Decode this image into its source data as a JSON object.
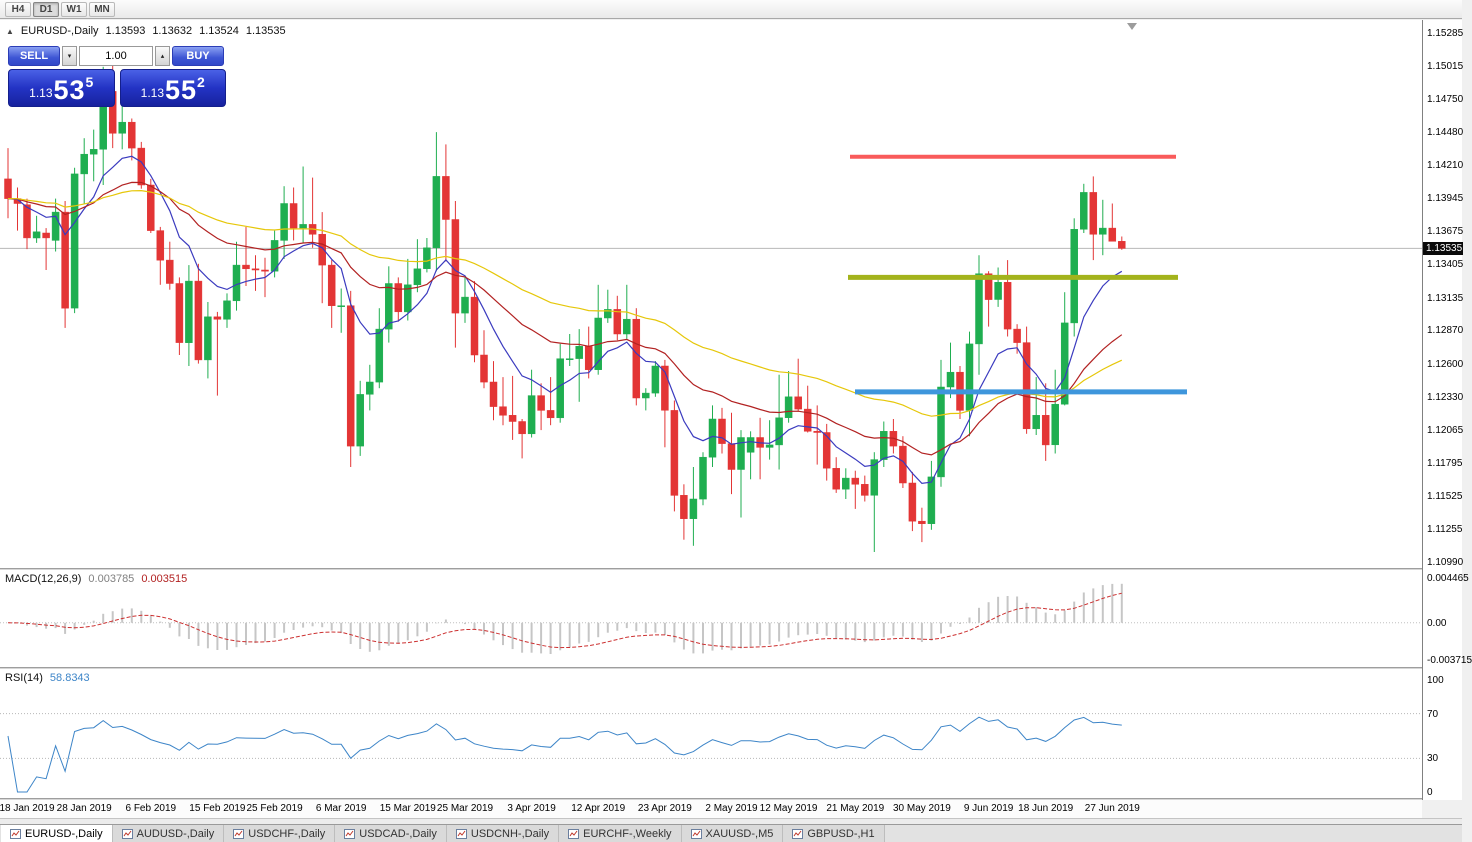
{
  "toolbar": {
    "buttons": [
      {
        "label": "H4",
        "active": false
      },
      {
        "label": "D1",
        "active": true
      },
      {
        "label": "W1",
        "active": false
      },
      {
        "label": "MN",
        "active": false
      }
    ]
  },
  "chart_header": {
    "symbol": "EURUSD-,Daily",
    "open": "1.13593",
    "high": "1.13632",
    "low": "1.13524",
    "close": "1.13535"
  },
  "trade_panel": {
    "sell": "SELL",
    "buy": "BUY",
    "volume": "1.00",
    "bid": {
      "prefix": "1.13",
      "big": "53",
      "sup": "5"
    },
    "ask": {
      "prefix": "1.13",
      "big": "55",
      "sup": "2"
    }
  },
  "price_axis": [
    "1.15285",
    "1.15015",
    "1.14750",
    "1.14480",
    "1.14210",
    "1.13945",
    "1.13675",
    "1.13405",
    "1.13135",
    "1.12870",
    "1.12600",
    "1.12330",
    "1.12065",
    "1.11795",
    "1.11525",
    "1.11255",
    "1.10990"
  ],
  "current_price_tag": "1.13535",
  "macd_panel": {
    "name": "MACD(12,26,9)",
    "value_main": "0.003785",
    "value_signal": "0.003515",
    "axis_labels": [
      "0.004465",
      "0.00",
      "-0.003715"
    ]
  },
  "rsi_panel": {
    "name": "RSI(14)",
    "value": "58.8343",
    "axis_labels": [
      "100",
      "70",
      "30",
      "0"
    ]
  },
  "tab_bar": {
    "tabs": [
      {
        "label": "EURUSD-,Daily",
        "active": true
      },
      {
        "label": "AUDUSD-,Daily",
        "active": false
      },
      {
        "label": "USDCHF-,Daily",
        "active": false
      },
      {
        "label": "USDCAD-,Daily",
        "active": false
      },
      {
        "label": "USDCNH-,Daily",
        "active": false
      },
      {
        "label": "EURCHF-,Weekly",
        "active": false
      },
      {
        "label": "XAUUSD-,M5",
        "active": false
      },
      {
        "label": "GBPUSD-,H1",
        "active": false
      }
    ]
  },
  "colors": {
    "up": "#1fae50",
    "down": "#e33535",
    "macd_hist": "#c6c6c6",
    "macd_signal": "#cc3030",
    "rsi_line": "#3d85c8",
    "bid_line": "#b8b8b8",
    "tag_bg": "#0a0a0a",
    "panel_blue": "#2333c4"
  },
  "chart_data": {
    "type": "candlestick",
    "symbol": "EURUSD-",
    "timeframe": "Daily",
    "ylim": [
      1.1094,
      1.1539
    ],
    "current_bid": 1.13535,
    "current_ask": 1.13552,
    "moving_averages": [
      {
        "type": "ema",
        "period": 9,
        "color": "#3b3bbf"
      },
      {
        "type": "ema",
        "period": 26,
        "color": "#b22222"
      },
      {
        "type": "ema",
        "period": 52,
        "color": "#e6c70a"
      }
    ],
    "macd": {
      "fast": 12,
      "slow": 26,
      "signal": 9,
      "scale_max": 0.004465,
      "scale_min": -0.003715
    },
    "rsi": {
      "period": 14,
      "levels": [
        70,
        30
      ],
      "current": 58.8343
    },
    "trend_lines": [
      {
        "price": 1.1428,
        "x1": 850,
        "x2": 1176,
        "color": "#f95b5b",
        "width": 4
      },
      {
        "price": 1.133,
        "x1": 848,
        "x2": 1178,
        "color": "#a3b31c",
        "width": 5
      },
      {
        "price": 1.1237,
        "x1": 855,
        "x2": 1187,
        "color": "#3e96dc",
        "width": 5
      }
    ],
    "date_ticks": [
      {
        "label": "18 Jan 2019",
        "index": 2
      },
      {
        "label": "28 Jan 2019",
        "index": 8
      },
      {
        "label": "6 Feb 2019",
        "index": 15
      },
      {
        "label": "15 Feb 2019",
        "index": 22
      },
      {
        "label": "25 Feb 2019",
        "index": 28
      },
      {
        "label": "6 Mar 2019",
        "index": 35
      },
      {
        "label": "15 Mar 2019",
        "index": 42
      },
      {
        "label": "25 Mar 2019",
        "index": 48
      },
      {
        "label": "3 Apr 2019",
        "index": 55
      },
      {
        "label": "12 Apr 2019",
        "index": 62
      },
      {
        "label": "23 Apr 2019",
        "index": 69
      },
      {
        "label": "2 May 2019",
        "index": 76
      },
      {
        "label": "12 May 2019",
        "index": 82
      },
      {
        "label": "21 May 2019",
        "index": 89
      },
      {
        "label": "30 May 2019",
        "index": 96
      },
      {
        "label": "9 Jun 2019",
        "index": 103
      },
      {
        "label": "18 Jun 2019",
        "index": 109
      },
      {
        "label": "27 Jun 2019",
        "index": 116
      }
    ],
    "candles": [
      [
        1.141,
        1.1435,
        1.1378,
        1.1394
      ],
      [
        1.1394,
        1.1403,
        1.1368,
        1.139
      ],
      [
        1.1389,
        1.1394,
        1.1353,
        1.1362
      ],
      [
        1.1362,
        1.138,
        1.1358,
        1.1367
      ],
      [
        1.1366,
        1.137,
        1.1336,
        1.1362
      ],
      [
        1.136,
        1.1394,
        1.1351,
        1.1383
      ],
      [
        1.1383,
        1.1392,
        1.1289,
        1.1305
      ],
      [
        1.1305,
        1.1419,
        1.1301,
        1.1414
      ],
      [
        1.1414,
        1.1443,
        1.139,
        1.143
      ],
      [
        1.143,
        1.145,
        1.1408,
        1.1434
      ],
      [
        1.1434,
        1.1501,
        1.1405,
        1.1481
      ],
      [
        1.1481,
        1.1514,
        1.1435,
        1.1447
      ],
      [
        1.1447,
        1.1489,
        1.1434,
        1.1456
      ],
      [
        1.1456,
        1.1459,
        1.1425,
        1.1435
      ],
      [
        1.1435,
        1.144,
        1.1402,
        1.1405
      ],
      [
        1.1405,
        1.141,
        1.1366,
        1.1368
      ],
      [
        1.1368,
        1.1371,
        1.1324,
        1.1344
      ],
      [
        1.1344,
        1.1359,
        1.132,
        1.1325
      ],
      [
        1.1325,
        1.133,
        1.1267,
        1.1277
      ],
      [
        1.1277,
        1.134,
        1.1258,
        1.1327
      ],
      [
        1.1327,
        1.1341,
        1.126,
        1.1263
      ],
      [
        1.1263,
        1.131,
        1.1248,
        1.1298
      ],
      [
        1.1298,
        1.1302,
        1.1234,
        1.1296
      ],
      [
        1.1296,
        1.1317,
        1.1289,
        1.1311
      ],
      [
        1.1311,
        1.1359,
        1.1303,
        1.134
      ],
      [
        1.134,
        1.1371,
        1.1323,
        1.1337
      ],
      [
        1.1337,
        1.1348,
        1.1319,
        1.1336
      ],
      [
        1.1336,
        1.1346,
        1.1314,
        1.1335
      ],
      [
        1.1335,
        1.1368,
        1.133,
        1.136
      ],
      [
        1.136,
        1.1404,
        1.1345,
        1.139
      ],
      [
        1.139,
        1.1403,
        1.136,
        1.137
      ],
      [
        1.137,
        1.142,
        1.1358,
        1.1373
      ],
      [
        1.1373,
        1.1411,
        1.1354,
        1.1365
      ],
      [
        1.1365,
        1.1383,
        1.1309,
        1.134
      ],
      [
        1.134,
        1.1344,
        1.1289,
        1.1307
      ],
      [
        1.1307,
        1.1321,
        1.1285,
        1.1307
      ],
      [
        1.1307,
        1.1319,
        1.1176,
        1.1193
      ],
      [
        1.1193,
        1.1246,
        1.1185,
        1.1235
      ],
      [
        1.1235,
        1.1259,
        1.1222,
        1.1245
      ],
      [
        1.1245,
        1.1305,
        1.124,
        1.1288
      ],
      [
        1.1288,
        1.1339,
        1.1277,
        1.1325
      ],
      [
        1.1325,
        1.133,
        1.1294,
        1.1302
      ],
      [
        1.1302,
        1.1345,
        1.1295,
        1.1324
      ],
      [
        1.1324,
        1.1361,
        1.1318,
        1.1337
      ],
      [
        1.1337,
        1.1362,
        1.1334,
        1.1354
      ],
      [
        1.1354,
        1.1448,
        1.1335,
        1.1412
      ],
      [
        1.1412,
        1.1438,
        1.1343,
        1.1377
      ],
      [
        1.1377,
        1.1392,
        1.1273,
        1.1301
      ],
      [
        1.1301,
        1.133,
        1.1293,
        1.1314
      ],
      [
        1.1314,
        1.1327,
        1.1261,
        1.1267
      ],
      [
        1.1267,
        1.1287,
        1.124,
        1.1245
      ],
      [
        1.1245,
        1.1262,
        1.1214,
        1.1225
      ],
      [
        1.1225,
        1.1249,
        1.121,
        1.1218
      ],
      [
        1.1218,
        1.125,
        1.1198,
        1.1213
      ],
      [
        1.1213,
        1.1215,
        1.1183,
        1.1203
      ],
      [
        1.1203,
        1.1255,
        1.12,
        1.1234
      ],
      [
        1.1234,
        1.1244,
        1.1206,
        1.1222
      ],
      [
        1.1222,
        1.1249,
        1.121,
        1.1216
      ],
      [
        1.1216,
        1.1276,
        1.1212,
        1.1264
      ],
      [
        1.1264,
        1.1284,
        1.1258,
        1.1264
      ],
      [
        1.1264,
        1.1288,
        1.1229,
        1.1274
      ],
      [
        1.1274,
        1.129,
        1.1248,
        1.1255
      ],
      [
        1.1255,
        1.1324,
        1.1251,
        1.1297
      ],
      [
        1.1297,
        1.132,
        1.1293,
        1.1304
      ],
      [
        1.1304,
        1.1315,
        1.1279,
        1.1284
      ],
      [
        1.1284,
        1.1324,
        1.128,
        1.1296
      ],
      [
        1.1296,
        1.1305,
        1.1226,
        1.1232
      ],
      [
        1.1232,
        1.124,
        1.1222,
        1.1236
      ],
      [
        1.1236,
        1.1262,
        1.1233,
        1.1258
      ],
      [
        1.1258,
        1.1263,
        1.1192,
        1.1222
      ],
      [
        1.1222,
        1.123,
        1.114,
        1.1153
      ],
      [
        1.1153,
        1.1162,
        1.1117,
        1.1134
      ],
      [
        1.1134,
        1.1176,
        1.1112,
        1.115
      ],
      [
        1.115,
        1.1188,
        1.1145,
        1.1184
      ],
      [
        1.1184,
        1.1226,
        1.1176,
        1.1215
      ],
      [
        1.1215,
        1.1224,
        1.1187,
        1.1195
      ],
      [
        1.1195,
        1.122,
        1.1154,
        1.1174
      ],
      [
        1.1174,
        1.1206,
        1.1135,
        1.12
      ],
      [
        1.1188,
        1.1205,
        1.1166,
        1.12
      ],
      [
        1.12,
        1.1216,
        1.1166,
        1.1192
      ],
      [
        1.1192,
        1.1214,
        1.1182,
        1.1194
      ],
      [
        1.1194,
        1.1251,
        1.1174,
        1.1216
      ],
      [
        1.1216,
        1.1254,
        1.1212,
        1.1233
      ],
      [
        1.1233,
        1.1264,
        1.1221,
        1.1223
      ],
      [
        1.1223,
        1.1242,
        1.1204,
        1.1205
      ],
      [
        1.1205,
        1.1226,
        1.1178,
        1.1204
      ],
      [
        1.1204,
        1.1211,
        1.1165,
        1.1175
      ],
      [
        1.1175,
        1.1184,
        1.1155,
        1.1158
      ],
      [
        1.1158,
        1.1175,
        1.115,
        1.1167
      ],
      [
        1.1167,
        1.1173,
        1.1142,
        1.1162
      ],
      [
        1.1162,
        1.1169,
        1.1148,
        1.1153
      ],
      [
        1.1153,
        1.1188,
        1.1107,
        1.1182
      ],
      [
        1.1182,
        1.1213,
        1.1176,
        1.1205
      ],
      [
        1.1205,
        1.1215,
        1.1187,
        1.1193
      ],
      [
        1.1193,
        1.1201,
        1.1159,
        1.1163
      ],
      [
        1.1163,
        1.1172,
        1.1124,
        1.1132
      ],
      [
        1.1132,
        1.1143,
        1.1115,
        1.113
      ],
      [
        1.113,
        1.1181,
        1.1125,
        1.1168
      ],
      [
        1.1168,
        1.1263,
        1.116,
        1.1241
      ],
      [
        1.1241,
        1.1277,
        1.1232,
        1.1253
      ],
      [
        1.1253,
        1.1258,
        1.1215,
        1.1222
      ],
      [
        1.1222,
        1.1286,
        1.1201,
        1.1276
      ],
      [
        1.1276,
        1.1348,
        1.1251,
        1.1333
      ],
      [
        1.1333,
        1.1335,
        1.129,
        1.1312
      ],
      [
        1.1312,
        1.1338,
        1.1306,
        1.1326
      ],
      [
        1.1326,
        1.1344,
        1.1282,
        1.1288
      ],
      [
        1.1288,
        1.1292,
        1.1268,
        1.1277
      ],
      [
        1.1277,
        1.129,
        1.1203,
        1.1207
      ],
      [
        1.1207,
        1.1249,
        1.1202,
        1.1218
      ],
      [
        1.1218,
        1.1244,
        1.1181,
        1.1194
      ],
      [
        1.1194,
        1.1255,
        1.1187,
        1.1227
      ],
      [
        1.1227,
        1.1318,
        1.1226,
        1.1293
      ],
      [
        1.1293,
        1.1378,
        1.1282,
        1.1369
      ],
      [
        1.1369,
        1.1406,
        1.1366,
        1.1399
      ],
      [
        1.1399,
        1.1412,
        1.1344,
        1.1365
      ],
      [
        1.1365,
        1.1393,
        1.1348,
        1.137
      ],
      [
        1.137,
        1.139,
        1.136,
        1.13593
      ],
      [
        1.13593,
        1.13632,
        1.13524,
        1.13535
      ]
    ]
  }
}
